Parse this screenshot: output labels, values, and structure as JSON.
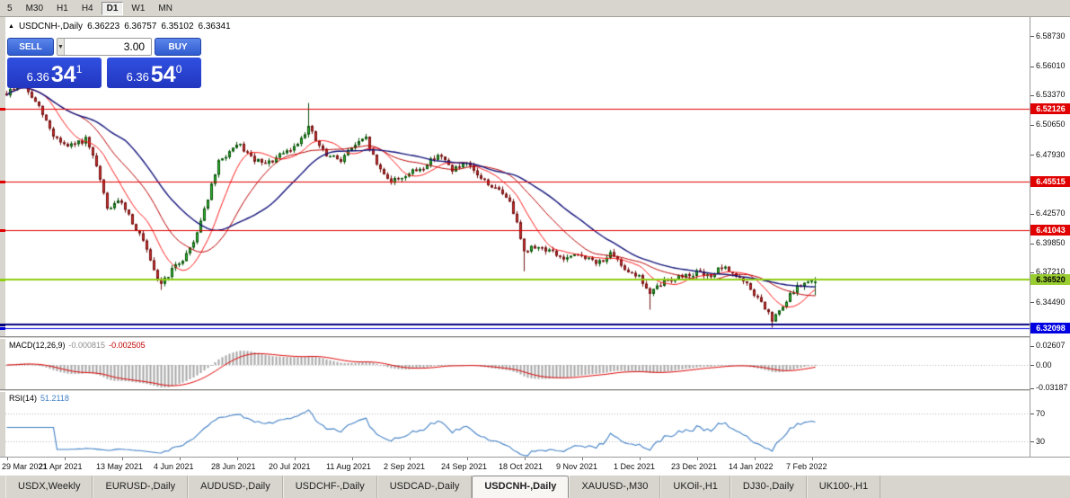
{
  "icons": {
    "triangle_up": "▲",
    "chevron_down": "▼"
  },
  "toolbar": {
    "timeframes": [
      {
        "label": "5",
        "active": false
      },
      {
        "label": "M30",
        "active": false
      },
      {
        "label": "H1",
        "active": false
      },
      {
        "label": "H4",
        "active": false
      },
      {
        "label": "D1",
        "active": true
      },
      {
        "label": "W1",
        "active": false
      },
      {
        "label": "MN",
        "active": false
      }
    ]
  },
  "chart_header": {
    "title": "USDCNH-,Daily",
    "open": "6.36223",
    "high": "6.36757",
    "low": "6.35102",
    "close": "6.36341"
  },
  "trade_panel": {
    "sell_label": "SELL",
    "buy_label": "BUY",
    "volume": "3.00",
    "bid_prefix": "6.36",
    "bid_big": "34",
    "bid_sup": "1",
    "ask_prefix": "6.36",
    "ask_big": "54",
    "ask_sup": "0"
  },
  "price_scale": {
    "ticks": [
      {
        "label": "6.58730",
        "p": 6.5873
      },
      {
        "label": "6.56010",
        "p": 6.5601
      },
      {
        "label": "6.53370",
        "p": 6.5337
      },
      {
        "label": "6.50650",
        "p": 6.5065
      },
      {
        "label": "6.47930",
        "p": 6.4793
      },
      {
        "label": "6.42570",
        "p": 6.4257
      },
      {
        "label": "6.39850",
        "p": 6.3985
      },
      {
        "label": "6.37210",
        "p": 6.3721
      },
      {
        "label": "6.34490",
        "p": 6.3449
      }
    ],
    "line_labels": [
      {
        "label": "6.52126",
        "p": 6.52126,
        "bg": "#e00000",
        "fg": "#ffffff"
      },
      {
        "label": "6.45515",
        "p": 6.45515,
        "bg": "#e00000",
        "fg": "#ffffff"
      },
      {
        "label": "6.41043",
        "p": 6.41043,
        "bg": "#e00000",
        "fg": "#ffffff"
      },
      {
        "label": "6.36520",
        "p": 6.3652,
        "bg": "#9acd32",
        "fg": "#000000"
      },
      {
        "label": "6.32098",
        "p": 6.32098,
        "bg": "#0000e0",
        "fg": "#ffffff"
      }
    ]
  },
  "indicators": {
    "macd": {
      "name": "MACD(12,26,9)",
      "value_main": "-0.000815",
      "value_signal": "-0.002505",
      "scale": [
        {
          "label": "0.02607",
          "v": 0.02607
        },
        {
          "label": "0.00",
          "v": 0
        },
        {
          "label": "-0.03187",
          "v": -0.03187
        }
      ]
    },
    "rsi": {
      "name": "RSI(14)",
      "value": "51.2118",
      "scale": [
        {
          "label": "70",
          "v": 70
        },
        {
          "label": "30",
          "v": 30
        }
      ]
    }
  },
  "tabs": [
    {
      "label": "USDX,Weekly",
      "active": false
    },
    {
      "label": "EURUSD-,Daily",
      "active": false
    },
    {
      "label": "AUDUSD-,Daily",
      "active": false
    },
    {
      "label": "USDCHF-,Daily",
      "active": false
    },
    {
      "label": "USDCAD-,Daily",
      "active": false
    },
    {
      "label": "USDCNH-,Daily",
      "active": true
    },
    {
      "label": "XAUUSD-,M30",
      "active": false
    },
    {
      "label": "UKOil-,H1",
      "active": false
    },
    {
      "label": "DJ30-,Daily",
      "active": false
    },
    {
      "label": "UK100-,H1",
      "active": false
    }
  ],
  "chart_data": {
    "type": "candlestick",
    "symbol": "USDCNH-",
    "timeframe": "Daily",
    "bars": 226,
    "seed": 9,
    "y_range": [
      6.314,
      6.596
    ],
    "last_bar": {
      "o": 6.36223,
      "h": 6.36757,
      "l": 6.35102,
      "c": 6.36341
    },
    "x_dates": [
      "29 Mar 2021",
      "21 Apr 2021",
      "13 May 2021",
      "4 Jun 2021",
      "28 Jun 2021",
      "20 Jul 2021",
      "11 Aug 2021",
      "2 Sep 2021",
      "24 Sep 2021",
      "18 Oct 2021",
      "9 Nov 2021",
      "1 Dec 2021",
      "23 Dec 2021",
      "14 Jan 2022",
      "7 Feb 2022"
    ],
    "price_path": [
      [
        0,
        6.535
      ],
      [
        4,
        6.546
      ],
      [
        9,
        6.522
      ],
      [
        13,
        6.497
      ],
      [
        17,
        6.486
      ],
      [
        22,
        6.493
      ],
      [
        25,
        6.468
      ],
      [
        28,
        6.43
      ],
      [
        32,
        6.437
      ],
      [
        35,
        6.418
      ],
      [
        38,
        6.4
      ],
      [
        41,
        6.372
      ],
      [
        43,
        6.362
      ],
      [
        46,
        6.374
      ],
      [
        49,
        6.384
      ],
      [
        52,
        6.4
      ],
      [
        56,
        6.44
      ],
      [
        59,
        6.472
      ],
      [
        62,
        6.482
      ],
      [
        65,
        6.488
      ],
      [
        68,
        6.476
      ],
      [
        72,
        6.47
      ],
      [
        76,
        6.478
      ],
      [
        80,
        6.486
      ],
      [
        84,
        6.505
      ],
      [
        86,
        6.492
      ],
      [
        89,
        6.478
      ],
      [
        93,
        6.475
      ],
      [
        96,
        6.486
      ],
      [
        100,
        6.494
      ],
      [
        103,
        6.47
      ],
      [
        107,
        6.455
      ],
      [
        112,
        6.462
      ],
      [
        116,
        6.468
      ],
      [
        120,
        6.48
      ],
      [
        124,
        6.466
      ],
      [
        128,
        6.47
      ],
      [
        132,
        6.458
      ],
      [
        136,
        6.448
      ],
      [
        139,
        6.442
      ],
      [
        142,
        6.42
      ],
      [
        144,
        6.39
      ],
      [
        147,
        6.396
      ],
      [
        151,
        6.392
      ],
      [
        155,
        6.384
      ],
      [
        160,
        6.388
      ],
      [
        164,
        6.38
      ],
      [
        168,
        6.388
      ],
      [
        172,
        6.376
      ],
      [
        176,
        6.368
      ],
      [
        179,
        6.352
      ],
      [
        183,
        6.364
      ],
      [
        187,
        6.368
      ],
      [
        192,
        6.372
      ],
      [
        195,
        6.368
      ],
      [
        199,
        6.376
      ],
      [
        202,
        6.372
      ],
      [
        206,
        6.36
      ],
      [
        210,
        6.344
      ],
      [
        213,
        6.328
      ],
      [
        216,
        6.34
      ],
      [
        219,
        6.356
      ],
      [
        222,
        6.362
      ],
      [
        225,
        6.3634
      ]
    ],
    "spikes": [
      {
        "i": 84,
        "high": 6.5265
      },
      {
        "i": 43,
        "low": 6.356
      },
      {
        "i": 144,
        "low": 6.373
      },
      {
        "i": 179,
        "low": 6.338
      },
      {
        "i": 213,
        "low": 6.3215
      }
    ],
    "lines": [
      {
        "p": 6.52126,
        "color": "#e00000",
        "w": 1
      },
      {
        "p": 6.45515,
        "color": "#e00000",
        "w": 1
      },
      {
        "p": 6.41043,
        "color": "#e00000",
        "w": 1
      },
      {
        "p": 6.3652,
        "color": "#8fce12",
        "w": 2
      },
      {
        "p": 6.3245,
        "color": "#000080",
        "w": 2
      },
      {
        "p": 6.32098,
        "color": "#0000e0",
        "w": 1
      }
    ],
    "ma_estimated": [
      {
        "period": 10,
        "type": "sma",
        "color": "#ff1a1a",
        "width": 1
      },
      {
        "period": 21,
        "type": "sma",
        "color": "#b80000",
        "width": 1
      },
      {
        "period": 34,
        "type": "sma",
        "color": "#12127a",
        "width": 1.4
      }
    ],
    "colors": {
      "up_fill": "#2fc32f",
      "up_edge": "#0b4f0b",
      "down_fill": "#d62f2f",
      "down_edge": "#701212",
      "macd_hist": "#a6a6a6",
      "macd_signal": "#dd0000",
      "rsi_line": "#3f7ec4",
      "background": "#ffffff"
    }
  }
}
